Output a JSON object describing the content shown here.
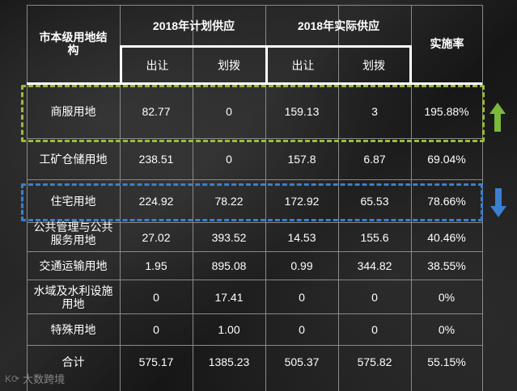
{
  "header": {
    "col0": "市本级用地结构",
    "plan_group": "2018年计划供应",
    "actual_group": "2018年实际供应",
    "rate": "实施率",
    "sub": [
      "出让",
      "划拨",
      "出让",
      "划拨"
    ]
  },
  "rows": [
    {
      "name": "商服用地",
      "plan_sell": "82.77",
      "plan_alloc": "0",
      "act_sell": "159.13",
      "act_alloc": "3",
      "rate": "195.88%"
    },
    {
      "name": "工矿仓储用地",
      "plan_sell": "238.51",
      "plan_alloc": "0",
      "act_sell": "157.8",
      "act_alloc": "6.87",
      "rate": "69.04%"
    },
    {
      "name": "住宅用地",
      "plan_sell": "224.92",
      "plan_alloc": "78.22",
      "act_sell": "172.92",
      "act_alloc": "65.53",
      "rate": "78.66%"
    },
    {
      "name": "公共管理与公共服务用地",
      "plan_sell": "27.02",
      "plan_alloc": "393.52",
      "act_sell": "14.53",
      "act_alloc": "155.6",
      "rate": "40.46%"
    },
    {
      "name": "交通运输用地",
      "plan_sell": "1.95",
      "plan_alloc": "895.08",
      "act_sell": "0.99",
      "act_alloc": "344.82",
      "rate": "38.55%"
    },
    {
      "name": "水域及水利设施用地",
      "plan_sell": "0",
      "plan_alloc": "17.41",
      "act_sell": "0",
      "act_alloc": "0",
      "rate": "0%"
    },
    {
      "name": "特殊用地",
      "plan_sell": "0",
      "plan_alloc": "1.00",
      "act_sell": "0",
      "act_alloc": "0",
      "rate": "0%"
    },
    {
      "name": "合计",
      "plan_sell": "575.17",
      "plan_alloc": "1385.23",
      "act_sell": "505.37",
      "act_alloc": "575.82",
      "rate": "55.15%"
    }
  ],
  "indicators": {
    "up_color": "#7db83a",
    "down_color": "#3a7fcf",
    "green_dash": "#9bbb3a",
    "blue_dash": "#3a7fcf",
    "up_icon": "arrow-up-icon",
    "down_icon": "arrow-down-icon"
  },
  "watermark": "大数跨境"
}
